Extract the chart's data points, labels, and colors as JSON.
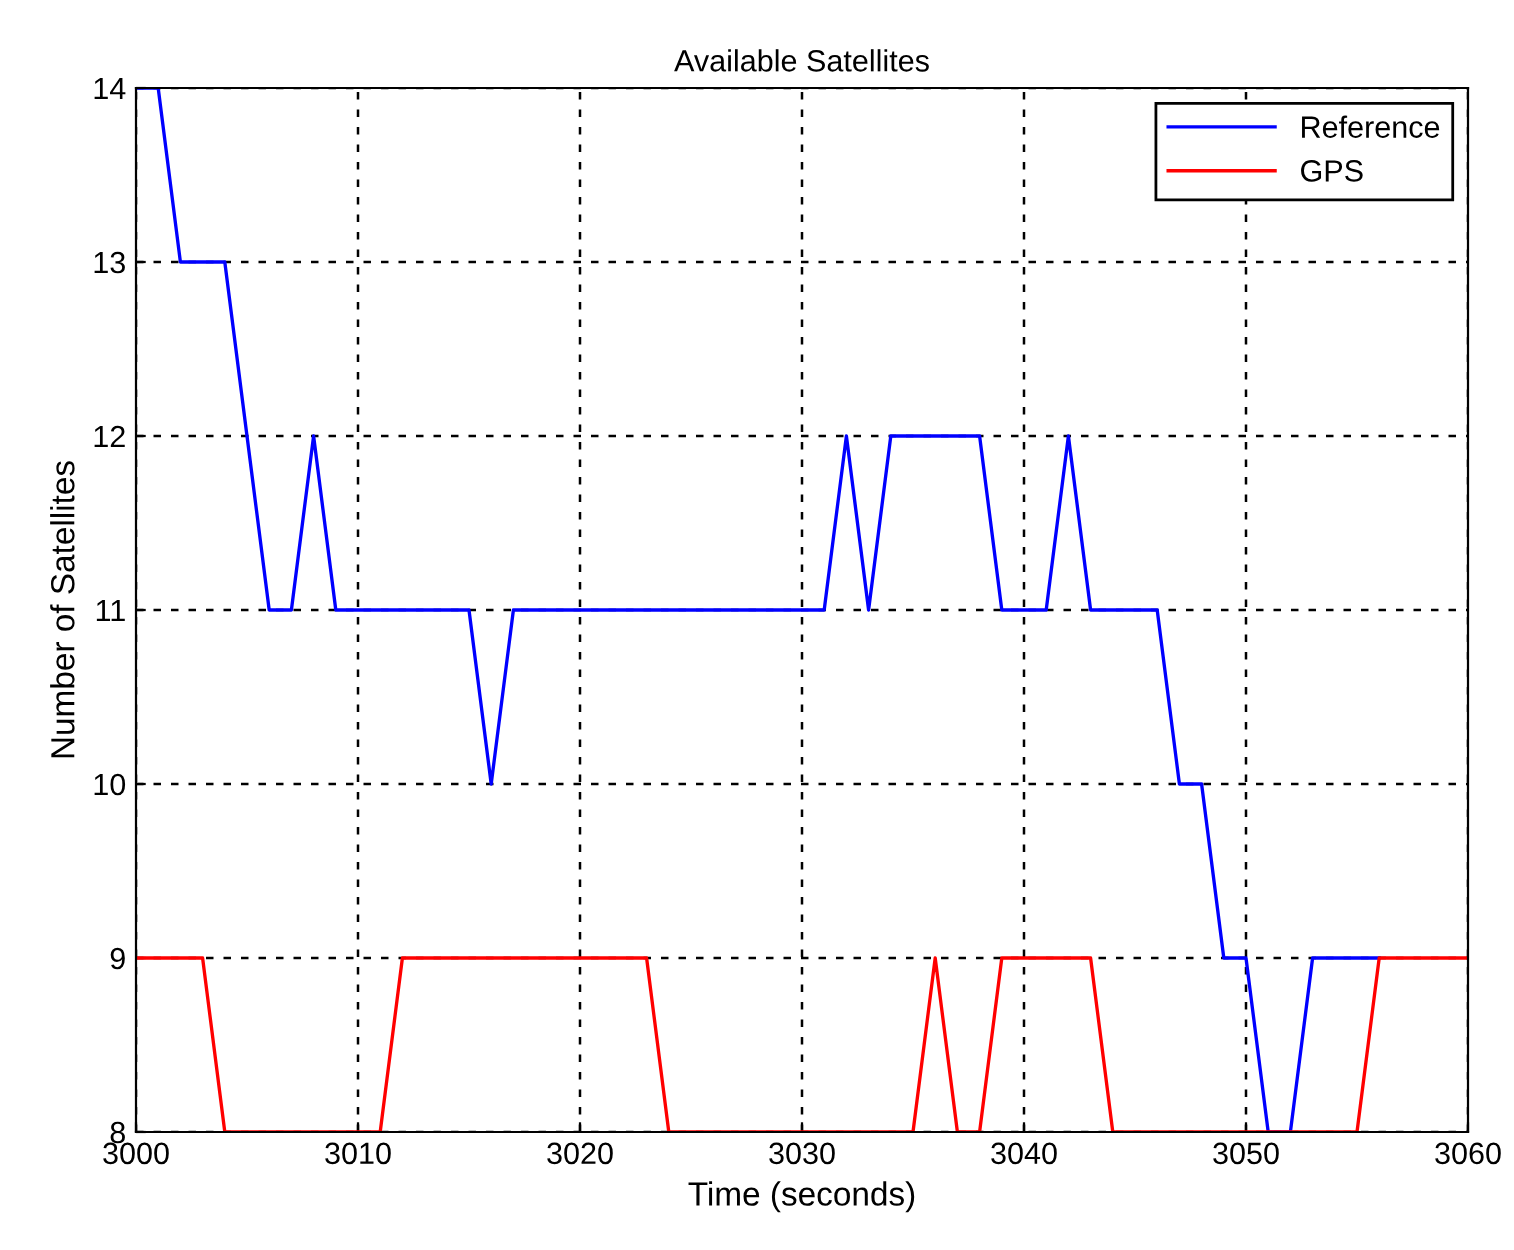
{
  "chart_data": {
    "type": "line",
    "title": "Available Satellites",
    "xlabel": "Time (seconds)",
    "ylabel": "Number of Satellites",
    "x": [
      3000,
      3001,
      3002,
      3003,
      3004,
      3005,
      3006,
      3007,
      3008,
      3009,
      3010,
      3011,
      3012,
      3013,
      3014,
      3015,
      3016,
      3017,
      3018,
      3019,
      3020,
      3021,
      3022,
      3023,
      3024,
      3025,
      3026,
      3027,
      3028,
      3029,
      3030,
      3031,
      3032,
      3033,
      3034,
      3035,
      3036,
      3037,
      3038,
      3039,
      3040,
      3041,
      3042,
      3043,
      3044,
      3045,
      3046,
      3047,
      3048,
      3049,
      3050,
      3051,
      3052,
      3053,
      3054,
      3055,
      3056,
      3057,
      3058,
      3059,
      3060
    ],
    "series": [
      {
        "name": "Reference",
        "color": "#0000ff",
        "values": [
          14,
          14,
          13,
          13,
          13,
          12,
          11,
          11,
          12,
          11,
          11,
          11,
          11,
          11,
          11,
          11,
          10,
          11,
          11,
          11,
          11,
          11,
          11,
          11,
          11,
          11,
          11,
          11,
          11,
          11,
          11,
          11,
          12,
          11,
          12,
          12,
          12,
          12,
          12,
          11,
          11,
          11,
          12,
          11,
          11,
          11,
          11,
          10,
          10,
          9,
          9,
          8,
          8,
          9,
          9,
          9,
          9,
          null,
          null,
          null,
          null
        ]
      },
      {
        "name": "GPS",
        "color": "#ff0000",
        "values": [
          9,
          9,
          9,
          9,
          8,
          8,
          8,
          8,
          8,
          8,
          8,
          8,
          9,
          9,
          9,
          9,
          9,
          9,
          9,
          9,
          9,
          9,
          9,
          9,
          8,
          8,
          8,
          8,
          8,
          8,
          8,
          8,
          8,
          8,
          8,
          8,
          9,
          8,
          8,
          9,
          9,
          9,
          9,
          9,
          8,
          8,
          8,
          8,
          8,
          8,
          8,
          8,
          8,
          8,
          8,
          8,
          9,
          9,
          9,
          9,
          9
        ]
      }
    ],
    "xlim": [
      3000,
      3060
    ],
    "xticks": [
      3000,
      3010,
      3020,
      3030,
      3040,
      3050,
      3060
    ],
    "ylim": [
      8,
      14
    ],
    "yticks": [
      8,
      9,
      10,
      11,
      12,
      13,
      14
    ],
    "grid": true,
    "legend": "top right",
    "line_style": "solid",
    "marker": "none"
  }
}
